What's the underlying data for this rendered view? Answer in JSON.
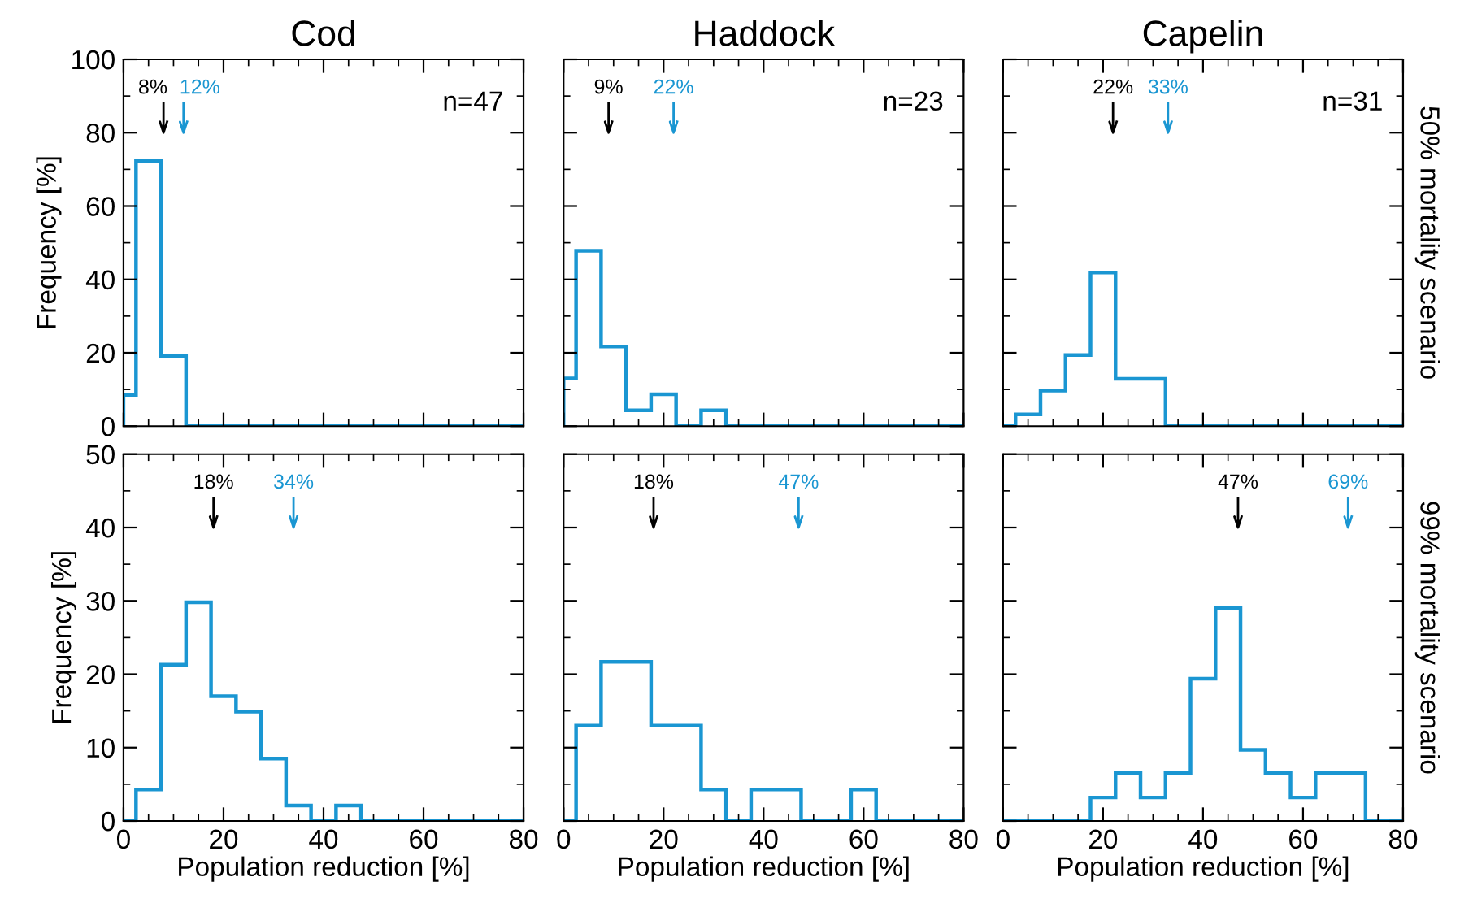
{
  "chart_data": [
    {
      "type": "histogram",
      "title": "Cod",
      "ylabel": "Frequency [%]",
      "color": "#1a96d2",
      "bins": [
        0,
        2.5,
        7.5,
        12.5,
        17.5,
        22.5,
        27.5,
        32.5,
        37.5,
        42.5,
        47.5,
        52.5,
        57.5,
        62.5,
        67.5,
        72.5,
        77.5,
        80
      ],
      "values": [
        8.5,
        72.3,
        19.1,
        0,
        0,
        0,
        0,
        0,
        0,
        0,
        0,
        0,
        0,
        0,
        0,
        0,
        0
      ],
      "xlim": [
        0,
        80
      ],
      "ylim": [
        0,
        100
      ],
      "xticks": [
        0,
        20,
        40,
        60,
        80
      ],
      "yticks": [
        0,
        20,
        40,
        60,
        80,
        100
      ],
      "tick_labels": "y",
      "ref_lines": [
        {
          "axis": "x",
          "value": 8,
          "label": "8%",
          "color": "#000000"
        },
        {
          "axis": "x",
          "value": 12,
          "label": "12%",
          "color": "#1a96d2"
        }
      ],
      "annotations": [
        "n=47"
      ]
    },
    {
      "type": "histogram",
      "title": "Haddock",
      "color": "#1a96d2",
      "bins": [
        0,
        2.5,
        7.5,
        12.5,
        17.5,
        22.5,
        27.5,
        32.5,
        37.5,
        42.5,
        47.5,
        52.5,
        57.5,
        62.5,
        67.5,
        72.5,
        77.5,
        80
      ],
      "values": [
        13.0,
        47.8,
        21.7,
        4.3,
        8.7,
        0,
        4.3,
        0,
        0,
        0,
        0,
        0,
        0,
        0,
        0,
        0,
        0
      ],
      "xlim": [
        0,
        80
      ],
      "ylim": [
        0,
        100
      ],
      "xticks": [
        0,
        20,
        40,
        60,
        80
      ],
      "yticks": [
        0,
        20,
        40,
        60,
        80,
        100
      ],
      "tick_labels": false,
      "ref_lines": [
        {
          "axis": "x",
          "value": 9,
          "label": "9%",
          "color": "#000000"
        },
        {
          "axis": "x",
          "value": 22,
          "label": "22%",
          "color": "#1a96d2"
        }
      ],
      "annotations": [
        "n=23"
      ]
    },
    {
      "type": "histogram",
      "title": "Capelin",
      "y2label": "50% mortality scenario",
      "color": "#1a96d2",
      "bins": [
        0,
        2.5,
        7.5,
        12.5,
        17.5,
        22.5,
        27.5,
        32.5,
        37.5,
        42.5,
        47.5,
        52.5,
        57.5,
        62.5,
        67.5,
        72.5,
        77.5,
        80
      ],
      "values": [
        0,
        3.2,
        9.7,
        19.4,
        41.9,
        12.9,
        12.9,
        0,
        0,
        0,
        0,
        0,
        0,
        0,
        0,
        0,
        0
      ],
      "xlim": [
        0,
        80
      ],
      "ylim": [
        0,
        100
      ],
      "xticks": [
        0,
        20,
        40,
        60,
        80
      ],
      "yticks": [
        0,
        20,
        40,
        60,
        80,
        100
      ],
      "tick_labels": false,
      "ref_lines": [
        {
          "axis": "x",
          "value": 22,
          "label": "22%",
          "color": "#000000"
        },
        {
          "axis": "x",
          "value": 33,
          "label": "33%",
          "color": "#1a96d2"
        }
      ],
      "annotations": [
        "n=31"
      ]
    },
    {
      "type": "histogram",
      "ylabel": "Frequency [%]",
      "xlabel": "Population reduction [%]",
      "color": "#1a96d2",
      "bins": [
        0,
        2.5,
        7.5,
        12.5,
        17.5,
        22.5,
        27.5,
        32.5,
        37.5,
        42.5,
        47.5,
        52.5,
        57.5,
        62.5,
        67.5,
        72.5,
        77.5,
        80
      ],
      "values": [
        0,
        4.3,
        21.3,
        29.8,
        17.0,
        14.9,
        8.5,
        2.1,
        0,
        2.1,
        0,
        0,
        0,
        0,
        0,
        0,
        0
      ],
      "xlim": [
        0,
        80
      ],
      "ylim": [
        0,
        50
      ],
      "xticks": [
        0,
        20,
        40,
        60,
        80
      ],
      "yticks": [
        0,
        10,
        20,
        30,
        40,
        50
      ],
      "ref_lines": [
        {
          "axis": "x",
          "value": 18,
          "label": "18%",
          "color": "#000000"
        },
        {
          "axis": "x",
          "value": 34,
          "label": "34%",
          "color": "#1a96d2"
        }
      ]
    },
    {
      "type": "histogram",
      "xlabel": "Population reduction [%]",
      "color": "#1a96d2",
      "bins": [
        0,
        2.5,
        7.5,
        12.5,
        17.5,
        22.5,
        27.5,
        32.5,
        37.5,
        42.5,
        47.5,
        52.5,
        57.5,
        62.5,
        67.5,
        72.5,
        77.5,
        80
      ],
      "values": [
        0,
        13.0,
        21.7,
        21.7,
        13.0,
        13.0,
        4.3,
        0,
        4.3,
        4.3,
        0,
        0,
        4.3,
        0,
        0,
        0,
        0
      ],
      "xlim": [
        0,
        80
      ],
      "ylim": [
        0,
        50
      ],
      "xticks": [
        0,
        20,
        40,
        60,
        80
      ],
      "yticks": [
        0,
        10,
        20,
        30,
        40,
        50
      ],
      "tick_labels": "x",
      "ref_lines": [
        {
          "axis": "x",
          "value": 18,
          "label": "18%",
          "color": "#000000"
        },
        {
          "axis": "x",
          "value": 47,
          "label": "47%",
          "color": "#1a96d2"
        }
      ]
    },
    {
      "type": "histogram",
      "xlabel": "Population reduction [%]",
      "y2label": "99% mortality scenario",
      "color": "#1a96d2",
      "bins": [
        0,
        2.5,
        7.5,
        12.5,
        17.5,
        22.5,
        27.5,
        32.5,
        37.5,
        42.5,
        47.5,
        52.5,
        57.5,
        62.5,
        67.5,
        72.5,
        77.5,
        80
      ],
      "values": [
        0,
        0,
        0,
        0,
        3.2,
        6.5,
        3.2,
        6.5,
        19.4,
        29.0,
        9.7,
        6.5,
        3.2,
        6.5,
        6.5,
        0,
        0
      ],
      "xlim": [
        0,
        80
      ],
      "ylim": [
        0,
        50
      ],
      "xticks": [
        0,
        20,
        40,
        60,
        80
      ],
      "yticks": [
        0,
        10,
        20,
        30,
        40,
        50
      ],
      "tick_labels": "x",
      "ref_lines": [
        {
          "axis": "x",
          "value": 47,
          "label": "47%",
          "color": "#000000"
        },
        {
          "axis": "x",
          "value": 69,
          "label": "69%",
          "color": "#1a96d2"
        }
      ]
    }
  ]
}
